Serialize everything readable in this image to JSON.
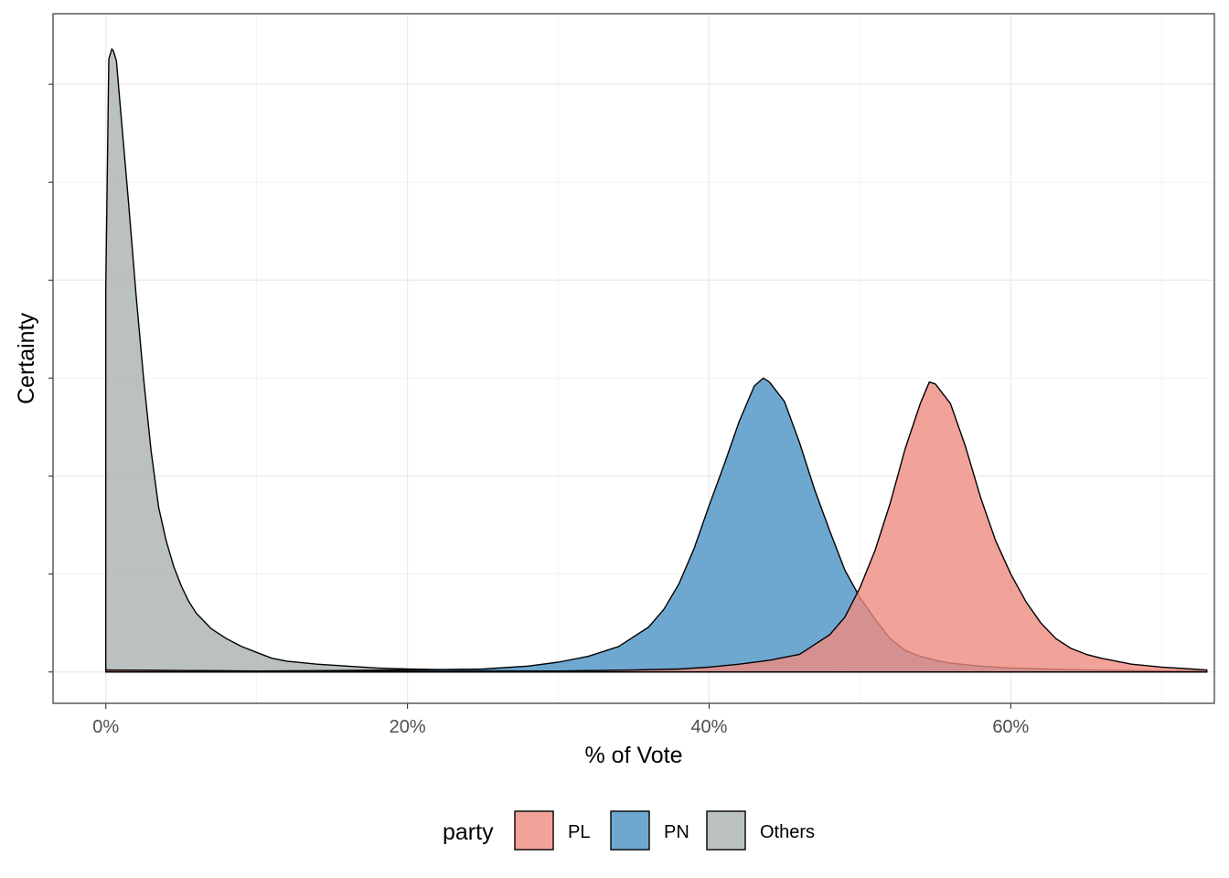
{
  "chart_data": {
    "type": "area",
    "subtype": "density",
    "xlabel": "% of Vote",
    "ylabel": "Certainty",
    "x_ticks": [
      {
        "value": 0,
        "label": "0%"
      },
      {
        "value": 20,
        "label": "20%"
      },
      {
        "value": 40,
        "label": "40%"
      },
      {
        "value": 60,
        "label": "60%"
      }
    ],
    "xlim": [
      -3.5,
      73.5
    ],
    "ylim": [
      -0.16,
      3.36
    ],
    "y_tick_labels_shown": false,
    "grid": true,
    "legend": {
      "title": "party",
      "position": "bottom",
      "items": [
        {
          "label": "PL",
          "color": "#ee8b80"
        },
        {
          "label": "PN",
          "color": "#4a92c4"
        },
        {
          "label": "Others",
          "color": "#a9b1b0"
        }
      ]
    },
    "series": [
      {
        "name": "Others",
        "color": "#a9b1b0",
        "x": [
          0,
          0.2,
          0.4,
          0.5,
          0.7,
          1,
          1.5,
          2,
          2.5,
          3,
          3.5,
          4,
          4.5,
          5,
          5.5,
          6,
          7,
          8,
          9,
          10,
          11,
          12,
          14,
          16,
          18,
          20,
          25,
          30,
          40,
          50,
          60,
          70,
          73
        ],
        "y": [
          1.97,
          3.13,
          3.18,
          3.17,
          3.12,
          2.85,
          2.4,
          1.93,
          1.5,
          1.13,
          0.84,
          0.67,
          0.54,
          0.44,
          0.36,
          0.3,
          0.22,
          0.17,
          0.13,
          0.1,
          0.07,
          0.055,
          0.04,
          0.03,
          0.02,
          0.015,
          0.008,
          0.005,
          0.003,
          0.002,
          0.001,
          0.0005,
          0.0003
        ]
      },
      {
        "name": "PN",
        "color": "#4a92c4",
        "x": [
          0,
          10,
          20,
          25,
          28,
          30,
          32,
          34,
          36,
          37,
          38,
          39,
          40,
          41,
          42,
          43,
          43.6,
          44,
          45,
          46,
          47,
          48,
          49,
          50,
          51,
          52,
          53,
          54,
          55,
          56,
          58,
          60,
          65,
          70,
          73
        ],
        "y": [
          0.01,
          0.005,
          0.01,
          0.015,
          0.03,
          0.05,
          0.08,
          0.13,
          0.23,
          0.32,
          0.45,
          0.63,
          0.85,
          1.06,
          1.28,
          1.46,
          1.5,
          1.48,
          1.38,
          1.17,
          0.93,
          0.72,
          0.52,
          0.38,
          0.27,
          0.17,
          0.11,
          0.08,
          0.06,
          0.045,
          0.03,
          0.02,
          0.01,
          0.006,
          0.004
        ]
      },
      {
        "name": "PL",
        "color": "#ee8b80",
        "x": [
          0,
          10,
          20,
          30,
          35,
          38,
          40,
          42,
          44,
          46,
          48,
          49,
          50,
          51,
          52,
          53,
          54,
          54.6,
          55,
          56,
          57,
          58,
          59,
          60,
          61,
          62,
          63,
          64,
          65,
          66,
          68,
          70,
          72,
          73
        ],
        "y": [
          0.01,
          0.005,
          0.003,
          0.005,
          0.01,
          0.015,
          0.025,
          0.04,
          0.06,
          0.09,
          0.19,
          0.28,
          0.43,
          0.62,
          0.86,
          1.14,
          1.37,
          1.48,
          1.47,
          1.37,
          1.15,
          0.89,
          0.67,
          0.5,
          0.36,
          0.25,
          0.17,
          0.12,
          0.09,
          0.07,
          0.04,
          0.025,
          0.015,
          0.01
        ]
      }
    ]
  }
}
